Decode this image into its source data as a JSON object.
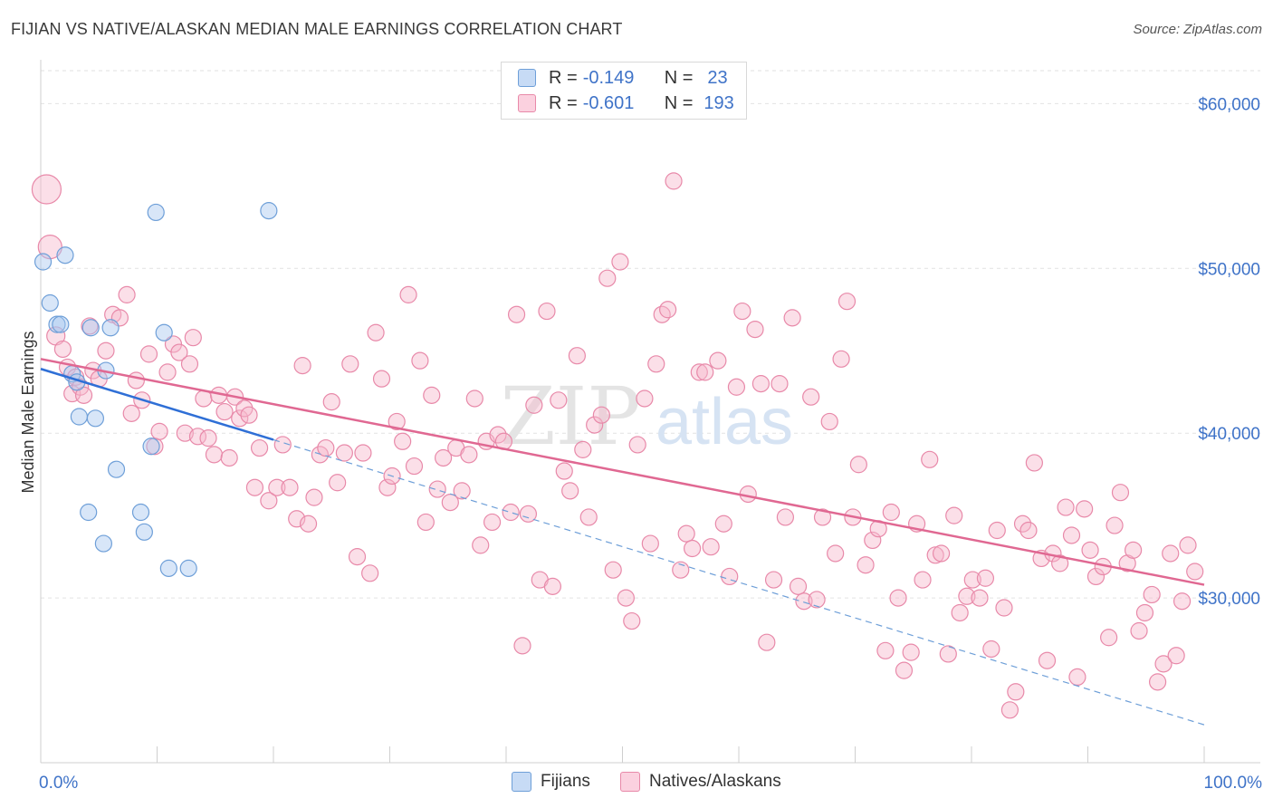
{
  "title": "FIJIAN VS NATIVE/ALASKAN MEDIAN MALE EARNINGS CORRELATION CHART",
  "source": "Source: ZipAtlas.com",
  "watermark": {
    "zip": "ZIP",
    "atlas": "atlas"
  },
  "legend": [
    {
      "r_label": "R =",
      "r_value": "-0.149",
      "n_label": "N =",
      "n_value": "23",
      "color": "#a9c8f0",
      "border": "#6e9fd8"
    },
    {
      "r_label": "R =",
      "r_value": "-0.601",
      "n_label": "N =",
      "n_value": "193",
      "color": "#f7b8cd",
      "border": "#e889a9"
    }
  ],
  "bottom_legend": [
    {
      "label": "Fijians",
      "color": "#a9c8f0",
      "border": "#6e9fd8"
    },
    {
      "label": "Natives/Alaskans",
      "color": "#f7b8cd",
      "border": "#e889a9"
    }
  ],
  "chart_data": {
    "type": "scatter",
    "title": "FIJIAN VS NATIVE/ALASKAN MEDIAN MALE EARNINGS CORRELATION CHART",
    "xlabel": "",
    "ylabel": "Median Male Earnings",
    "xlim": [
      0,
      100
    ],
    "ylim": [
      20000,
      62000
    ],
    "x_tick_labels": [
      "0.0%",
      "100.0%"
    ],
    "y_ticks": [
      30000,
      40000,
      50000,
      60000
    ],
    "y_tick_labels": [
      "$30,000",
      "$40,000",
      "$50,000",
      "$60,000"
    ],
    "series": [
      {
        "name": "Fijians",
        "color": "#a9c8f0",
        "stroke": "#6e9fd8",
        "line_color": "#2f6fd6",
        "trend": {
          "x0": 0,
          "y0": 43900,
          "x1": 20,
          "y1": 39600
        },
        "points": [
          [
            0.2,
            50400,
            9
          ],
          [
            0.8,
            47900,
            9
          ],
          [
            1.4,
            46600,
            9
          ],
          [
            1.7,
            46600,
            9
          ],
          [
            2.1,
            50800,
            9
          ],
          [
            2.7,
            43600,
            9
          ],
          [
            3.1,
            43100,
            9
          ],
          [
            3.3,
            41000,
            9
          ],
          [
            4.1,
            35200,
            9
          ],
          [
            4.3,
            46400,
            9
          ],
          [
            4.7,
            40900,
            9
          ],
          [
            5.4,
            33300,
            9
          ],
          [
            5.6,
            43800,
            9
          ],
          [
            6.0,
            46400,
            9
          ],
          [
            6.5,
            37800,
            9
          ],
          [
            8.6,
            35200,
            9
          ],
          [
            8.9,
            34000,
            9
          ],
          [
            9.5,
            39200,
            9
          ],
          [
            9.9,
            53400,
            9
          ],
          [
            10.6,
            46100,
            9
          ],
          [
            11.0,
            31800,
            9
          ],
          [
            12.7,
            31800,
            9
          ],
          [
            19.6,
            53500,
            9
          ]
        ]
      },
      {
        "name": "Natives/Alaskans",
        "color": "#f7b8cd",
        "stroke": "#e889a9",
        "line_color": "#e06892",
        "trend": {
          "x0": 0,
          "y0": 44500,
          "x1": 100,
          "y1": 30800
        },
        "dashed_extension": {
          "x0": 20,
          "y0": 39600,
          "x1": 100,
          "y1": 22300
        },
        "points": [
          [
            0.5,
            54800,
            16
          ],
          [
            0.8,
            51300,
            13
          ],
          [
            1.3,
            45900,
            10
          ],
          [
            1.9,
            45100,
            9
          ],
          [
            2.3,
            44000,
            9
          ],
          [
            2.7,
            42400,
            9
          ],
          [
            3.0,
            43400,
            9
          ],
          [
            3.4,
            42800,
            9
          ],
          [
            3.7,
            42300,
            9
          ],
          [
            4.2,
            46500,
            9
          ],
          [
            4.5,
            43800,
            9
          ],
          [
            5.0,
            43300,
            9
          ],
          [
            5.6,
            45000,
            9
          ],
          [
            6.2,
            47200,
            9
          ],
          [
            6.8,
            47000,
            9
          ],
          [
            7.4,
            48400,
            9
          ],
          [
            7.8,
            41200,
            9
          ],
          [
            8.2,
            43200,
            9
          ],
          [
            8.7,
            42000,
            9
          ],
          [
            9.3,
            44800,
            9
          ],
          [
            9.8,
            39200,
            9
          ],
          [
            10.2,
            40100,
            9
          ],
          [
            10.9,
            43700,
            9
          ],
          [
            11.4,
            45400,
            9
          ],
          [
            11.9,
            44900,
            9
          ],
          [
            12.4,
            40000,
            9
          ],
          [
            12.8,
            44200,
            9
          ],
          [
            13.1,
            45800,
            9
          ],
          [
            13.5,
            39800,
            9
          ],
          [
            14.0,
            42100,
            9
          ],
          [
            14.4,
            39700,
            9
          ],
          [
            14.9,
            38700,
            9
          ],
          [
            15.3,
            42300,
            9
          ],
          [
            15.8,
            41300,
            9
          ],
          [
            16.2,
            38500,
            9
          ],
          [
            16.7,
            42200,
            9
          ],
          [
            17.1,
            40900,
            9
          ],
          [
            17.5,
            41500,
            9
          ],
          [
            17.9,
            41100,
            9
          ],
          [
            18.4,
            36700,
            9
          ],
          [
            18.8,
            39100,
            9
          ],
          [
            19.6,
            35900,
            9
          ],
          [
            20.3,
            36700,
            9
          ],
          [
            20.8,
            39300,
            9
          ],
          [
            21.4,
            36700,
            9
          ],
          [
            22.0,
            34800,
            9
          ],
          [
            22.5,
            44100,
            9
          ],
          [
            23.0,
            34500,
            9
          ],
          [
            23.5,
            36100,
            9
          ],
          [
            24.0,
            38700,
            9
          ],
          [
            24.5,
            39100,
            9
          ],
          [
            25.0,
            41900,
            9
          ],
          [
            25.5,
            37000,
            9
          ],
          [
            26.1,
            38800,
            9
          ],
          [
            26.6,
            44200,
            9
          ],
          [
            27.2,
            32500,
            9
          ],
          [
            27.7,
            38800,
            9
          ],
          [
            28.3,
            31500,
            9
          ],
          [
            28.8,
            46100,
            9
          ],
          [
            29.3,
            43300,
            9
          ],
          [
            29.8,
            36700,
            9
          ],
          [
            30.2,
            37400,
            9
          ],
          [
            30.6,
            40700,
            9
          ],
          [
            31.1,
            39500,
            9
          ],
          [
            31.6,
            48400,
            9
          ],
          [
            32.1,
            38000,
            9
          ],
          [
            32.6,
            44400,
            9
          ],
          [
            33.1,
            34600,
            9
          ],
          [
            33.6,
            42300,
            9
          ],
          [
            34.1,
            36600,
            9
          ],
          [
            34.6,
            38500,
            9
          ],
          [
            35.2,
            35800,
            9
          ],
          [
            35.7,
            39100,
            9
          ],
          [
            36.2,
            36500,
            9
          ],
          [
            36.8,
            38700,
            9
          ],
          [
            37.3,
            42100,
            9
          ],
          [
            37.8,
            33200,
            9
          ],
          [
            38.3,
            39500,
            9
          ],
          [
            38.8,
            34600,
            9
          ],
          [
            39.3,
            39900,
            9
          ],
          [
            39.8,
            39500,
            9
          ],
          [
            40.4,
            35200,
            9
          ],
          [
            40.9,
            47200,
            9
          ],
          [
            41.4,
            27100,
            9
          ],
          [
            41.9,
            35100,
            9
          ],
          [
            42.4,
            41700,
            9
          ],
          [
            42.9,
            31100,
            9
          ],
          [
            43.5,
            47400,
            9
          ],
          [
            44.0,
            30700,
            9
          ],
          [
            44.5,
            42000,
            9
          ],
          [
            45.0,
            37700,
            9
          ],
          [
            45.5,
            36500,
            9
          ],
          [
            46.1,
            44700,
            9
          ],
          [
            46.6,
            39000,
            9
          ],
          [
            47.1,
            34900,
            9
          ],
          [
            47.6,
            40500,
            9
          ],
          [
            48.2,
            41100,
            9
          ],
          [
            48.7,
            49400,
            9
          ],
          [
            49.2,
            31700,
            9
          ],
          [
            49.8,
            50400,
            9
          ],
          [
            50.3,
            30000,
            9
          ],
          [
            50.8,
            28600,
            9
          ],
          [
            51.3,
            39300,
            9
          ],
          [
            51.9,
            42100,
            9
          ],
          [
            52.4,
            33300,
            9
          ],
          [
            52.9,
            44200,
            9
          ],
          [
            53.4,
            47200,
            9
          ],
          [
            53.9,
            47500,
            9
          ],
          [
            54.4,
            55300,
            9
          ],
          [
            55.0,
            31700,
            9
          ],
          [
            55.5,
            33900,
            9
          ],
          [
            56.0,
            33000,
            9
          ],
          [
            56.6,
            43700,
            9
          ],
          [
            57.1,
            43700,
            9
          ],
          [
            57.6,
            33100,
            9
          ],
          [
            58.2,
            44400,
            9
          ],
          [
            58.7,
            34500,
            9
          ],
          [
            59.2,
            31300,
            9
          ],
          [
            59.8,
            42800,
            9
          ],
          [
            60.3,
            47400,
            9
          ],
          [
            60.8,
            36300,
            9
          ],
          [
            61.4,
            46300,
            9
          ],
          [
            61.9,
            43000,
            9
          ],
          [
            62.4,
            27300,
            9
          ],
          [
            63.0,
            31100,
            9
          ],
          [
            63.5,
            43000,
            9
          ],
          [
            64.0,
            34900,
            9
          ],
          [
            64.6,
            47000,
            9
          ],
          [
            65.1,
            30700,
            9
          ],
          [
            65.6,
            29800,
            9
          ],
          [
            66.2,
            42200,
            9
          ],
          [
            66.7,
            29900,
            9
          ],
          [
            67.2,
            34900,
            9
          ],
          [
            67.8,
            40700,
            9
          ],
          [
            68.3,
            32700,
            9
          ],
          [
            68.8,
            44500,
            9
          ],
          [
            69.3,
            48000,
            9
          ],
          [
            69.8,
            34900,
            9
          ],
          [
            70.3,
            38100,
            9
          ],
          [
            70.9,
            32000,
            9
          ],
          [
            71.5,
            33500,
            9
          ],
          [
            72.0,
            34200,
            9
          ],
          [
            72.6,
            26800,
            9
          ],
          [
            73.1,
            35200,
            9
          ],
          [
            73.7,
            30000,
            9
          ],
          [
            74.2,
            25600,
            9
          ],
          [
            74.8,
            26700,
            9
          ],
          [
            75.3,
            34500,
            9
          ],
          [
            75.8,
            31100,
            9
          ],
          [
            76.4,
            38400,
            9
          ],
          [
            76.9,
            32600,
            9
          ],
          [
            77.4,
            32700,
            9
          ],
          [
            78.0,
            26600,
            9
          ],
          [
            78.5,
            35000,
            9
          ],
          [
            79.0,
            29100,
            9
          ],
          [
            79.6,
            30100,
            9
          ],
          [
            80.1,
            31100,
            9
          ],
          [
            80.7,
            30000,
            9
          ],
          [
            81.2,
            31200,
            9
          ],
          [
            81.7,
            26900,
            9
          ],
          [
            82.2,
            34100,
            9
          ],
          [
            82.8,
            29400,
            9
          ],
          [
            83.3,
            23200,
            9
          ],
          [
            83.8,
            24300,
            9
          ],
          [
            84.4,
            34500,
            9
          ],
          [
            84.9,
            34100,
            9
          ],
          [
            85.4,
            38200,
            9
          ],
          [
            86.0,
            32400,
            9
          ],
          [
            86.5,
            26200,
            9
          ],
          [
            87.0,
            32700,
            9
          ],
          [
            87.6,
            32100,
            9
          ],
          [
            88.1,
            35500,
            9
          ],
          [
            88.6,
            33800,
            9
          ],
          [
            89.1,
            25200,
            9
          ],
          [
            89.7,
            35400,
            9
          ],
          [
            90.2,
            32900,
            9
          ],
          [
            90.7,
            31300,
            9
          ],
          [
            91.3,
            31900,
            9
          ],
          [
            91.8,
            27600,
            9
          ],
          [
            92.3,
            34400,
            9
          ],
          [
            92.8,
            36400,
            9
          ],
          [
            93.4,
            32100,
            9
          ],
          [
            93.9,
            32900,
            9
          ],
          [
            94.4,
            28000,
            9
          ],
          [
            94.9,
            29100,
            9
          ],
          [
            95.5,
            30200,
            9
          ],
          [
            96.0,
            24900,
            9
          ],
          [
            96.5,
            26000,
            9
          ],
          [
            97.1,
            32700,
            9
          ],
          [
            97.6,
            26500,
            9
          ],
          [
            98.1,
            29800,
            9
          ],
          [
            98.6,
            33200,
            9
          ],
          [
            99.2,
            31600,
            9
          ]
        ]
      }
    ]
  }
}
